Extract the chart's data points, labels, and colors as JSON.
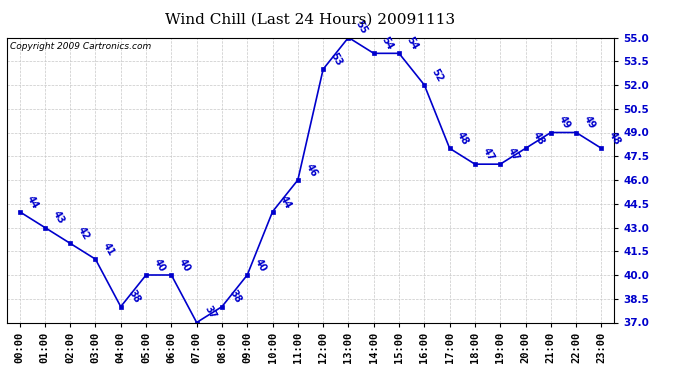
{
  "title": "Wind Chill (Last 24 Hours) 20091113",
  "copyright": "Copyright 2009 Cartronics.com",
  "x_labels": [
    "00:00",
    "01:00",
    "02:00",
    "03:00",
    "04:00",
    "05:00",
    "06:00",
    "07:00",
    "08:00",
    "09:00",
    "10:00",
    "11:00",
    "12:00",
    "13:00",
    "14:00",
    "15:00",
    "16:00",
    "17:00",
    "18:00",
    "19:00",
    "20:00",
    "21:00",
    "22:00",
    "23:00"
  ],
  "data_points": [
    [
      0,
      44
    ],
    [
      1,
      43
    ],
    [
      2,
      42
    ],
    [
      3,
      41
    ],
    [
      4,
      38
    ],
    [
      5,
      40
    ],
    [
      6,
      40
    ],
    [
      7,
      37
    ],
    [
      8,
      38
    ],
    [
      9,
      40
    ],
    [
      10,
      44
    ],
    [
      11,
      46
    ],
    [
      12,
      53
    ],
    [
      13,
      55
    ],
    [
      14,
      54
    ],
    [
      15,
      54
    ],
    [
      16,
      52
    ],
    [
      17,
      48
    ],
    [
      18,
      47
    ],
    [
      19,
      47
    ],
    [
      20,
      48
    ],
    [
      21,
      49
    ],
    [
      22,
      49
    ],
    [
      23,
      48
    ]
  ],
  "ylim": [
    37.0,
    55.0
  ],
  "yticks": [
    37.0,
    38.5,
    40.0,
    41.5,
    43.0,
    44.5,
    46.0,
    47.5,
    49.0,
    50.5,
    52.0,
    53.5,
    55.0
  ],
  "line_color": "#0000cc",
  "marker_color": "#0000cc",
  "bg_color": "#ffffff",
  "grid_color": "#c8c8c8",
  "title_fontsize": 11,
  "copyright_fontsize": 6.5,
  "tick_fontsize": 7.5,
  "label_fontsize": 7
}
